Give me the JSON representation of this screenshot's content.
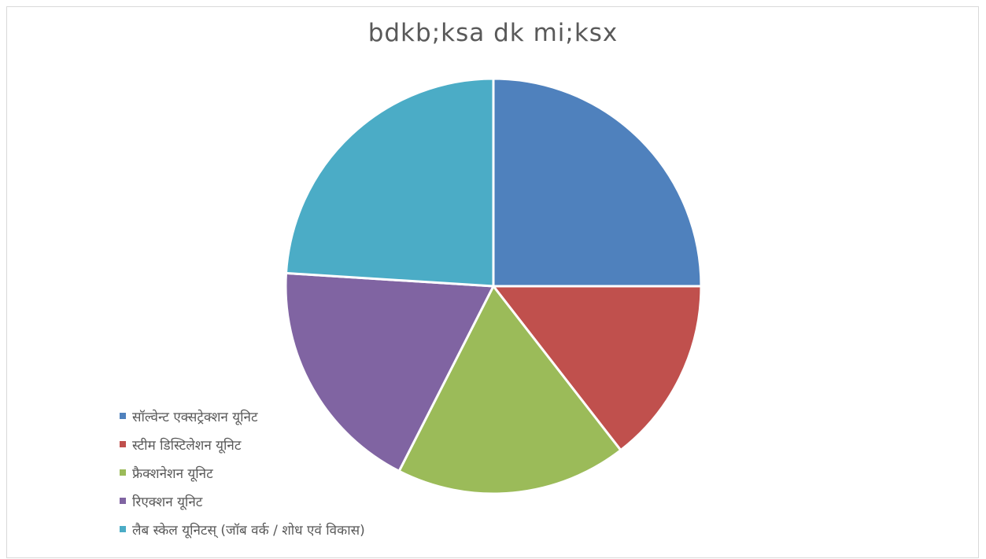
{
  "chart_data": {
    "type": "pie",
    "title": "bdkb;ksa dk mi;ksx",
    "categories": [
      "सॉल्वेन्ट एक्सट्रेक्शन यूनिट",
      "स्टीम डिस्टिलेशन यूनिट",
      "फ्रैक्शनेशन यूनिट",
      "रिएक्शन यूनिट",
      "लैब स्केल यूनिटस् (जॉब वर्क / शोध एवं विकास)"
    ],
    "values": [
      25,
      14.5,
      18,
      18.5,
      24
    ],
    "colors": [
      "#4F81BD",
      "#C0504D",
      "#9BBB59",
      "#8064A2",
      "#4BACC6"
    ],
    "legend_position": "bottom-left",
    "start_angle_deg": 0,
    "direction": "clockwise"
  }
}
